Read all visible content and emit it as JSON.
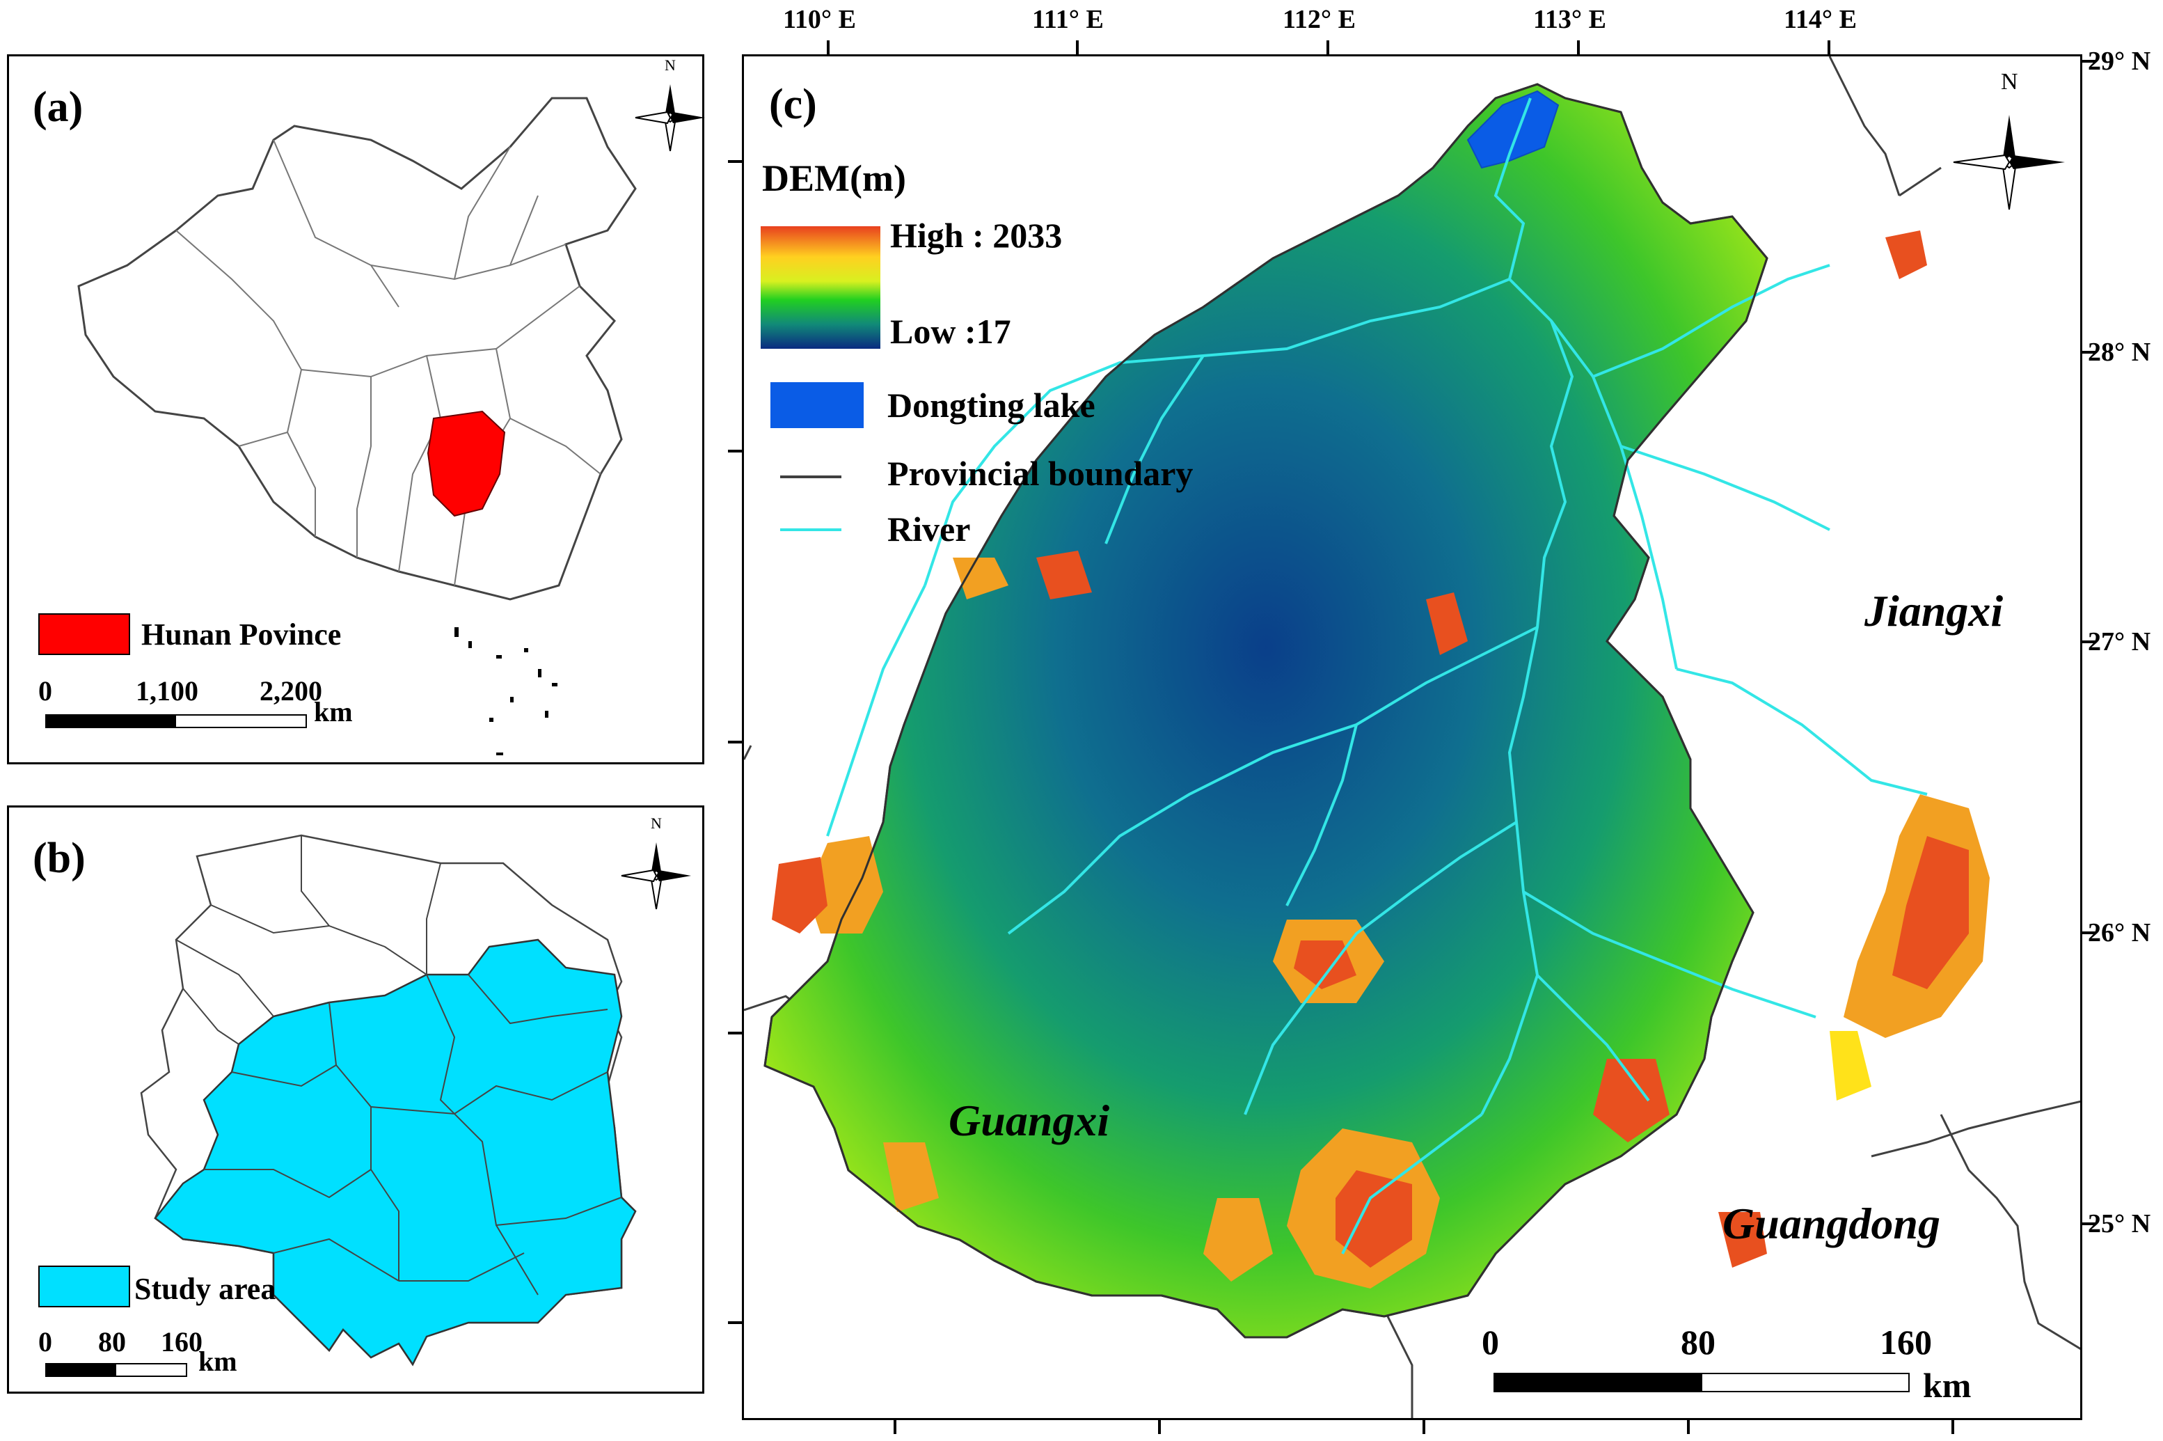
{
  "panel_a": {
    "label": "(a)",
    "legend_label": "Hunan Povince",
    "legend_color": "#ff0000",
    "scale_ticks": [
      "0",
      "1,100",
      "2,200"
    ],
    "scale_unit": "km",
    "north_label": "N"
  },
  "panel_b": {
    "label": "(b)",
    "legend_label": "Study area",
    "legend_color": "#00e0ff",
    "scale_ticks": [
      "0",
      "80",
      "160"
    ],
    "scale_unit": "km",
    "north_label": "N"
  },
  "panel_c": {
    "label": "(c)",
    "north_label": "N",
    "legend": {
      "title": "DEM(m)",
      "high_label": "High : 2033",
      "low_label": "Low :17",
      "lake_label": "Dongting lake",
      "lake_color": "#0a5ce6",
      "boundary_label": "Provincial boundary",
      "boundary_color": "#404040",
      "river_label": "River",
      "river_color": "#33e6e6"
    },
    "longitude_labels": [
      "110° E",
      "111° E",
      "112° E",
      "113° E",
      "114° E"
    ],
    "latitude_labels": [
      "29° N",
      "28° N",
      "27° N",
      "26° N",
      "25° N"
    ],
    "neighbors": [
      "Jiangxi",
      "Guangxi",
      "Guangdong"
    ],
    "scale_ticks": [
      "0",
      "80",
      "160"
    ],
    "scale_unit": "km"
  }
}
